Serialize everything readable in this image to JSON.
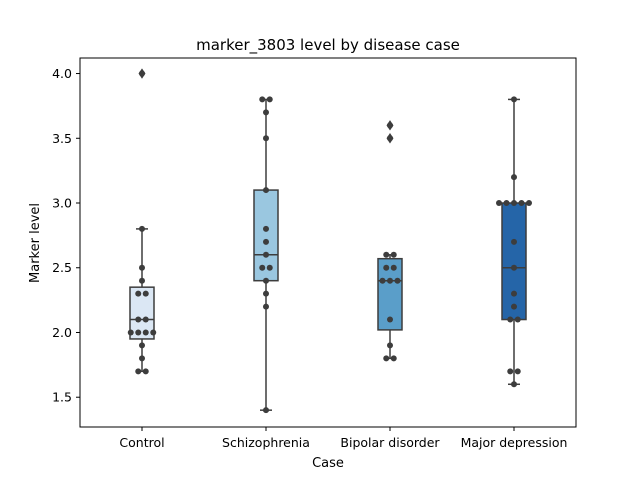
{
  "chart_data": {
    "type": "box",
    "title": "marker_3803 level by disease case",
    "xlabel": "Case",
    "ylabel": "Marker level",
    "ylim": [
      1.27,
      4.12
    ],
    "yticks": [
      "1.5",
      "2.0",
      "2.5",
      "3.0",
      "3.5",
      "4.0"
    ],
    "categories": [
      "Control",
      "Schizophrenia",
      "Bipolar disorder",
      "Major depression"
    ],
    "grid": false,
    "colors": [
      "#dbe7f4",
      "#9ac7e0",
      "#5a9ec9",
      "#2565a8"
    ],
    "edge_color": "#3d3d3d",
    "point_color": "#3d3d3d",
    "boxes": [
      {
        "q1": 1.95,
        "median": 2.1,
        "q3": 2.35,
        "whisker_low": 1.7,
        "whisker_high": 2.8,
        "outliers": [
          4.0
        ]
      },
      {
        "q1": 2.4,
        "median": 2.6,
        "q3": 3.1,
        "whisker_low": 1.4,
        "whisker_high": 3.8,
        "outliers": []
      },
      {
        "q1": 2.02,
        "median": 2.4,
        "q3": 2.57,
        "whisker_low": 1.8,
        "whisker_high": 2.6,
        "outliers": [
          3.5,
          3.6
        ]
      },
      {
        "q1": 2.1,
        "median": 2.5,
        "q3": 3.0,
        "whisker_low": 1.6,
        "whisker_high": 3.8,
        "outliers": []
      }
    ],
    "points": [
      [
        4.0,
        2.8,
        2.5,
        2.4,
        2.3,
        2.3,
        2.1,
        2.1,
        2.0,
        2.0,
        2.0,
        2.0,
        1.9,
        1.8,
        1.7,
        1.7
      ],
      [
        3.8,
        3.8,
        3.7,
        3.5,
        3.1,
        2.8,
        2.7,
        2.6,
        2.5,
        2.5,
        2.4,
        2.3,
        2.2,
        1.4
      ],
      [
        3.6,
        3.5,
        2.6,
        2.6,
        2.5,
        2.5,
        2.4,
        2.4,
        2.4,
        2.1,
        1.9,
        1.8,
        1.8
      ],
      [
        3.8,
        3.2,
        3.0,
        3.0,
        3.0,
        3.0,
        3.0,
        2.7,
        2.5,
        2.3,
        2.2,
        2.1,
        2.1,
        1.7,
        1.7,
        1.6
      ]
    ]
  }
}
